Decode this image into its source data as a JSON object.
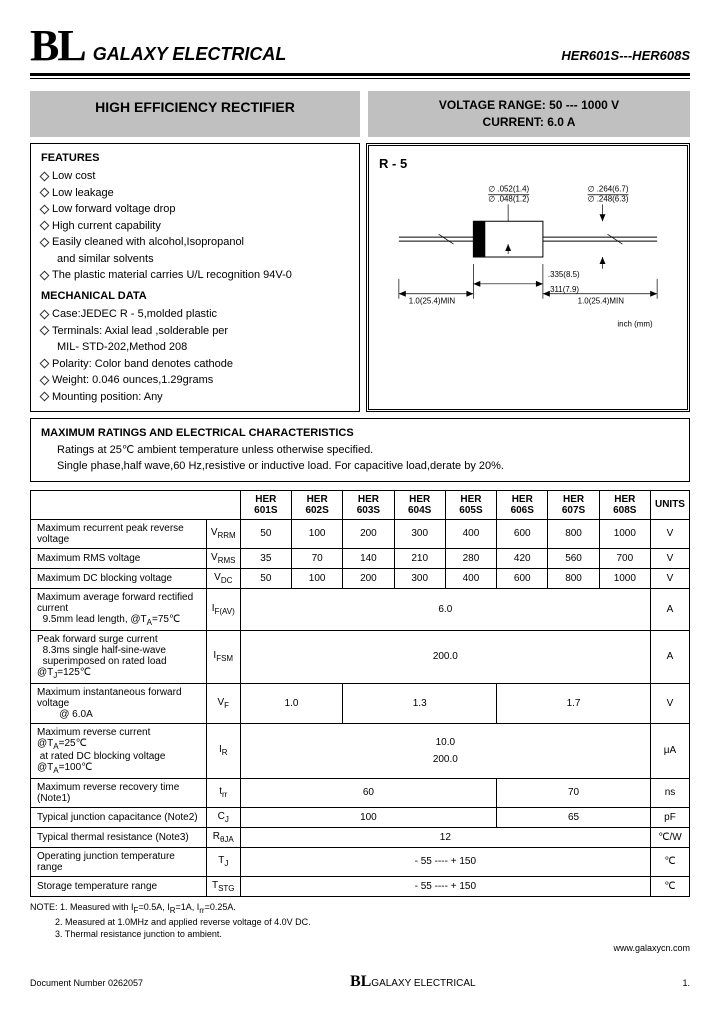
{
  "header": {
    "logo": "BL",
    "company": "GALAXY ELECTRICAL",
    "partno": "HER601S---HER608S"
  },
  "title": "HIGH EFFICIENCY RECTIFIER",
  "specs": {
    "voltage_label": "VOLTAGE  RANGE:",
    "voltage_value": "50 --- 1000 V",
    "current_label": "CURRENT:",
    "current_value": "6.0 A"
  },
  "features": {
    "heading": "FEATURES",
    "items": [
      "Low cost",
      "Low leakage",
      "Low forward voltage drop",
      "High current capability",
      "Easily cleaned with alcohol,Isopropanol",
      "The plastic material carries U/L  recognition 94V-0"
    ],
    "items_cont": "and similar solvents"
  },
  "mechanical": {
    "heading": "MECHANICAL DATA",
    "items": [
      "Case:JEDEC R - 5,molded plastic",
      "Terminals: Axial lead ,solderable per",
      "Polarity: Color band denotes cathode",
      "Weight: 0.046 ounces,1.29grams",
      "Mounting position: Any"
    ],
    "items_cont": "MIL- STD-202,Method 208"
  },
  "diagram": {
    "label": "R - 5",
    "dim1a": "∅ .052(1.4)",
    "dim1b": "∅ .048(1.2)",
    "dim2a": "∅ .264(6.7)",
    "dim2b": "∅ .248(6.3)",
    "dim3": ".335(8.5)",
    "dim4": ".311(7.9)",
    "dim5": "1.0(25.4)MIN",
    "unit": "inch (mm)"
  },
  "ratings": {
    "heading": "MAXIMUM RATINGS AND ELECTRICAL CHARACTERISTICS",
    "line1": "Ratings at 25℃ ambient temperature unless otherwise specified.",
    "line2": "Single phase,half wave,60 Hz,resistive or inductive load. For capacitive load,derate by 20%."
  },
  "table": {
    "cols": [
      "HER 601S",
      "HER 602S",
      "HER 603S",
      "HER 604S",
      "HER 605S",
      "HER 606S",
      "HER 607S",
      "HER 608S"
    ],
    "units": "UNITS",
    "rows": [
      {
        "param": "Maximum recurrent peak reverse voltage",
        "sym": "V",
        "sub": "RRM",
        "vals": [
          "50",
          "100",
          "200",
          "300",
          "400",
          "600",
          "800",
          "1000"
        ],
        "unit": "V"
      },
      {
        "param": "Maximum RMS voltage",
        "sym": "V",
        "sub": "RMS",
        "vals": [
          "35",
          "70",
          "140",
          "210",
          "280",
          "420",
          "560",
          "700"
        ],
        "unit": "V"
      },
      {
        "param": "Maximum DC blocking voltage",
        "sym": "V",
        "sub": "DC",
        "vals": [
          "50",
          "100",
          "200",
          "300",
          "400",
          "600",
          "800",
          "1000"
        ],
        "unit": "V"
      }
    ],
    "row_ifav": {
      "param": "Maximum average forward rectified current",
      "param2": "9.5mm lead length,          @T",
      "param2sub": "A",
      "param2end": "=75℃",
      "sym": "I",
      "sub": "F(AV)",
      "val": "6.0",
      "unit": "A"
    },
    "row_ifsm": {
      "param": "Peak forward surge current",
      "param2": "8.3ms single half-sine-wave",
      "param3": "superimposed on rated load    @T",
      "param3sub": "J",
      "param3end": "=125℃",
      "sym": "I",
      "sub": "FSM",
      "val": "200.0",
      "unit": "A"
    },
    "row_vf": {
      "param": "Maximum instantaneous forward voltage",
      "param2": "@ 6.0A",
      "sym": "V",
      "sub": "F",
      "v1": "1.0",
      "v2": "1.3",
      "v3": "1.7",
      "unit": "V"
    },
    "row_ir": {
      "param": "Maximum reverse current       @T",
      "paramsub": "A",
      "paramend": "=25℃",
      "param2": "at rated DC blocking  voltage   @T",
      "param2sub": "A",
      "param2end": "=100℃",
      "sym": "I",
      "sub": "R",
      "v1": "10.0",
      "v2": "200.0",
      "unit": "μA"
    },
    "row_trr": {
      "param": "Maximum reverse recovery time    (Note1)",
      "sym": "t",
      "sub": "rr",
      "v1": "60",
      "v2": "70",
      "unit": "ns"
    },
    "row_cj": {
      "param": "Typical junction capacitance       (Note2)",
      "sym": "C",
      "sub": "J",
      "v1": "100",
      "v2": "65",
      "unit": "pF"
    },
    "row_rth": {
      "param": "Typical thermal  resistance        (Note3)",
      "sym": "R",
      "sub": "θJA",
      "val": "12",
      "unit": "℃/W"
    },
    "row_tj": {
      "param": "Operating junction temperature range",
      "sym": "T",
      "sub": "J",
      "val": "- 55 ---- + 150",
      "unit": "℃"
    },
    "row_tstg": {
      "param": "Storage temperature range",
      "sym": "T",
      "sub": "STG",
      "val": "- 55 ---- + 150",
      "unit": "℃"
    }
  },
  "notes": {
    "n1": "NOTE:  1. Measured with I",
    "n1b": "=0.5A, I",
    "n1c": "=1A, I",
    "n1d": "=0.25A.",
    "n2": "2. Measured at 1.0MHz and applied reverse voltage of 4.0V DC.",
    "n3": "3. Thermal resistance junction to ambient."
  },
  "url": "www.galaxycn.com",
  "footer": {
    "docnum": "Document  Number  0262057",
    "logo": "BL",
    "company": "GALAXY ELECTRICAL",
    "page": "1."
  }
}
